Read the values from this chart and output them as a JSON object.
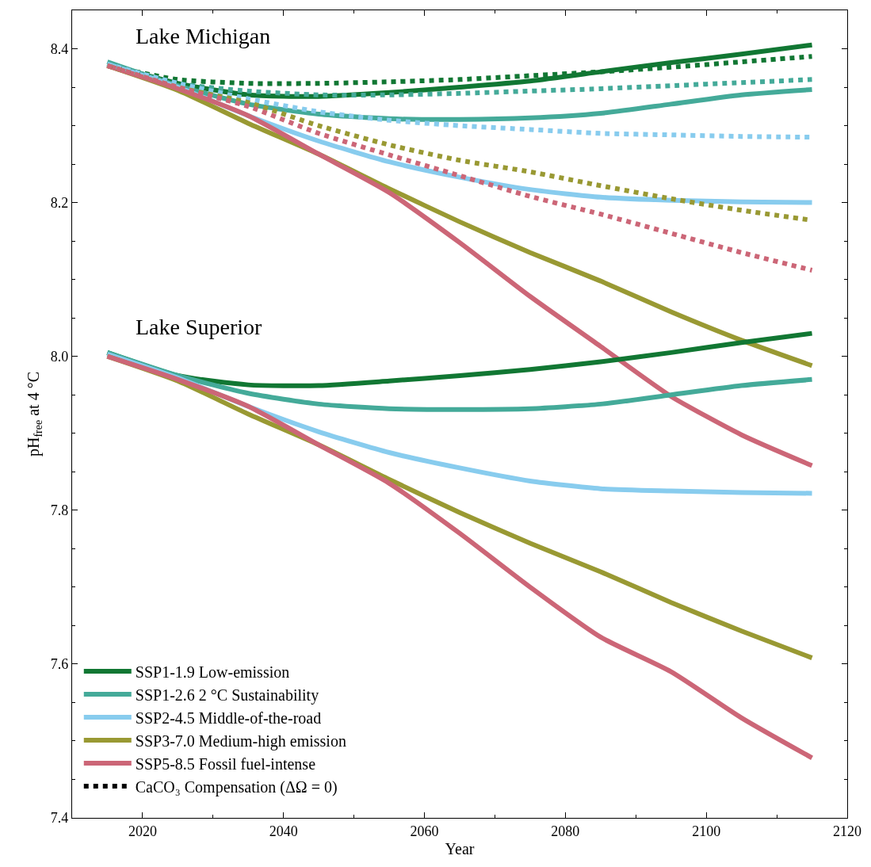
{
  "chart_data": {
    "type": "line",
    "xlabel": "Year",
    "ylabel": "pH$_{free}$ at 4 °C",
    "annotations": [
      "Lake Michigan",
      "Lake Superior"
    ],
    "x": [
      2015,
      2025,
      2035,
      2045,
      2055,
      2065,
      2075,
      2085,
      2095,
      2105,
      2115
    ],
    "xlim": [
      2010,
      2120
    ],
    "xticks": [
      2020,
      2040,
      2060,
      2080,
      2100,
      2120
    ],
    "ylim": [
      7.4,
      8.45
    ],
    "yticks": [
      {
        "value": 7.4,
        "label": "7.4"
      },
      {
        "value": 7.6,
        "label": "7.6"
      },
      {
        "value": 7.8,
        "label": "7.8"
      },
      {
        "value": 8.0,
        "label": "8.0"
      },
      {
        "value": 8.2,
        "label": "8.2"
      },
      {
        "value": 8.4,
        "label": "8.4"
      }
    ],
    "legend": "bottom left",
    "line_style": "solid",
    "series": [
      {
        "name": "SSP1-1.9 Low-emission",
        "color": "#117733",
        "values": [
          8.38,
          8.355,
          8.34,
          8.338,
          8.343,
          8.35,
          8.358,
          8.37,
          8.382,
          8.393,
          8.405
        ]
      },
      {
        "name": "SSP1-2.6 2 °C Sustainability",
        "color": "#44aa99",
        "values": [
          8.383,
          8.352,
          8.328,
          8.315,
          8.309,
          8.308,
          8.31,
          8.316,
          8.328,
          8.34,
          8.347
        ]
      },
      {
        "name": "SSP2-4.5 Middle-of-the-road",
        "color": "#88ccee",
        "values": [
          8.38,
          8.35,
          8.313,
          8.28,
          8.253,
          8.233,
          8.217,
          8.207,
          8.203,
          8.201,
          8.2
        ]
      },
      {
        "name": "SSP3-7.0 Medium-high emission",
        "color": "#999933",
        "values": [
          8.378,
          8.346,
          8.303,
          8.263,
          8.218,
          8.175,
          8.135,
          8.098,
          8.058,
          8.021,
          7.988
        ]
      },
      {
        "name": "SSP5-8.5 Fossil fuel-intense",
        "color": "#cc6677",
        "values": [
          8.378,
          8.348,
          8.313,
          8.263,
          8.213,
          8.148,
          8.078,
          8.013,
          7.948,
          7.898,
          7.858
        ]
      },
      {
        "name": "CaCO₃ Compensation (ΔΩ = 0)",
        "color": "#000000",
        "line_style": "dotted",
        "values": [
          null,
          null,
          null,
          null,
          null,
          null,
          null,
          null,
          null,
          null,
          null
        ]
      },
      {
        "color": "#117733",
        "line_style": "dotted",
        "values": [
          8.378,
          8.36,
          8.355,
          8.355,
          8.357,
          8.36,
          8.365,
          8.37,
          8.376,
          8.383,
          8.39
        ]
      },
      {
        "color": "#44aa99",
        "line_style": "dotted",
        "values": [
          8.38,
          8.355,
          8.345,
          8.34,
          8.34,
          8.342,
          8.345,
          8.348,
          8.352,
          8.356,
          8.36
        ]
      },
      {
        "color": "#88ccee",
        "line_style": "dotted",
        "values": [
          8.38,
          8.355,
          8.335,
          8.318,
          8.307,
          8.3,
          8.295,
          8.29,
          8.288,
          8.286,
          8.285
        ]
      },
      {
        "color": "#999933",
        "line_style": "dotted",
        "values": [
          8.378,
          8.35,
          8.33,
          8.3,
          8.275,
          8.255,
          8.24,
          8.222,
          8.205,
          8.19,
          8.177
        ]
      },
      {
        "color": "#cc6677",
        "line_style": "dotted",
        "values": [
          8.378,
          8.35,
          8.325,
          8.29,
          8.262,
          8.235,
          8.208,
          8.185,
          8.16,
          8.135,
          8.112
        ]
      },
      {
        "color": "#117733",
        "values": [
          8.005,
          7.975,
          7.963,
          7.962,
          7.968,
          7.975,
          7.983,
          7.993,
          8.005,
          8.018,
          8.03
        ]
      },
      {
        "color": "#44aa99",
        "values": [
          8.005,
          7.975,
          7.952,
          7.938,
          7.932,
          7.931,
          7.932,
          7.938,
          7.95,
          7.962,
          7.97
        ]
      },
      {
        "color": "#88ccee",
        "values": [
          8.003,
          7.972,
          7.935,
          7.902,
          7.875,
          7.855,
          7.838,
          7.828,
          7.825,
          7.823,
          7.822
        ]
      },
      {
        "color": "#999933",
        "values": [
          8.0,
          7.968,
          7.925,
          7.885,
          7.84,
          7.797,
          7.757,
          7.72,
          7.68,
          7.643,
          7.608
        ]
      },
      {
        "color": "#cc6677",
        "values": [
          8.0,
          7.97,
          7.935,
          7.885,
          7.835,
          7.77,
          7.7,
          7.635,
          7.59,
          7.53,
          7.478
        ]
      }
    ]
  }
}
